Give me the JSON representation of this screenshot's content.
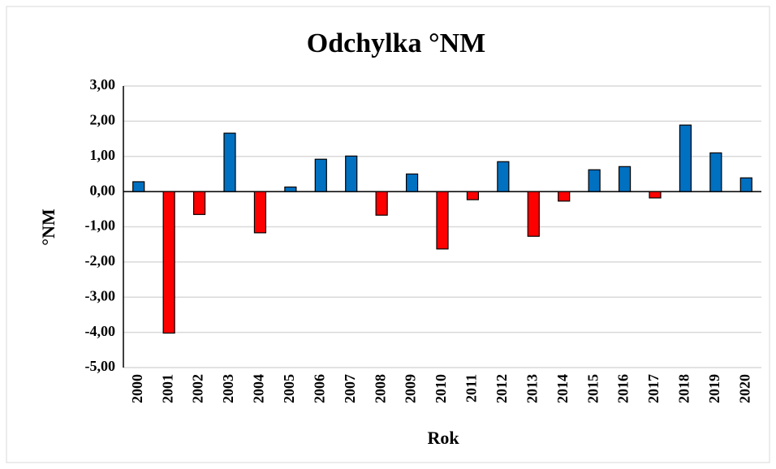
{
  "chart_data": {
    "type": "bar",
    "title": "Odchylka °NM",
    "x_label": "Rok",
    "y_label": "°NM",
    "categories": [
      "2000",
      "2001",
      "2002",
      "2003",
      "2004",
      "2005",
      "2006",
      "2007",
      "2008",
      "2009",
      "2010",
      "2011",
      "2012",
      "2013",
      "2014",
      "2015",
      "2016",
      "2017",
      "2018",
      "2019",
      "2020"
    ],
    "values": [
      0.28,
      -4.02,
      -0.65,
      1.66,
      -1.17,
      0.13,
      0.92,
      1.01,
      -0.67,
      0.5,
      -1.63,
      -0.23,
      0.85,
      -1.27,
      -0.27,
      0.62,
      0.71,
      -0.18,
      1.89,
      1.1,
      0.39
    ],
    "positive_color": "#0070c0",
    "negative_color": "#ff0000",
    "ylim": [
      -5,
      3
    ],
    "yticks": [
      {
        "value": -5,
        "label": "-5,00"
      },
      {
        "value": -4,
        "label": "-4,00"
      },
      {
        "value": -3,
        "label": "-3,00"
      },
      {
        "value": -2,
        "label": "-2,00"
      },
      {
        "value": -1,
        "label": "-1,00"
      },
      {
        "value": 0,
        "label": "0,00"
      },
      {
        "value": 1,
        "label": "1,00"
      },
      {
        "value": 2,
        "label": "2,00"
      },
      {
        "value": 3,
        "label": "3,00"
      }
    ],
    "grid": true
  }
}
